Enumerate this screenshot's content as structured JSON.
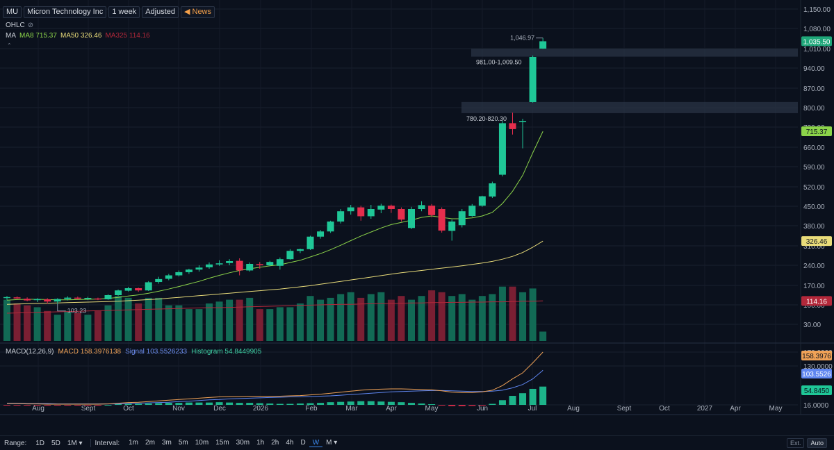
{
  "header": {
    "symbol": "MU",
    "company": "Micron Technology Inc",
    "interval": "1 week",
    "adjust": "Adjusted",
    "news_label": "News"
  },
  "ohlc_label": "OHLC",
  "ma_legend": {
    "label": "MA",
    "items": [
      {
        "text": "MA8 715.37",
        "color": "#8cd44a"
      },
      {
        "text": "MA50 326.46",
        "color": "#e9dc7a"
      },
      {
        "text": "MA325 114.16",
        "color": "#b3283a"
      }
    ]
  },
  "macd_legend": {
    "label": "MACD(12,26,9)",
    "items": [
      {
        "text": "MACD 158.3976138",
        "color": "#f0a257"
      },
      {
        "text": "Signal 103.5526233",
        "color": "#6e8ff2"
      },
      {
        "text": "Histogram 54.8449905",
        "color": "#3fd1a5"
      }
    ]
  },
  "price_axis": {
    "ticks": [
      "1,150.00",
      "1,080.00",
      "1,010.00",
      "940.00",
      "870.00",
      "800.00",
      "730.00",
      "660.00",
      "590.00",
      "520.00",
      "450.00",
      "380.00",
      "310.00",
      "240.00",
      "170.00",
      "100.00",
      "30.00"
    ],
    "labels": [
      {
        "text": "1,035.50",
        "bg": "#1fa77a",
        "fg": "#ffffff",
        "price": 1035.5
      },
      {
        "text": "715.37",
        "bg": "#8cd44a",
        "fg": "#0b111d",
        "price": 715.37
      },
      {
        "text": "326.46",
        "bg": "#e9dc7a",
        "fg": "#0b111d",
        "price": 326.46
      },
      {
        "text": "114.16",
        "bg": "#b3283a",
        "fg": "#ffffff",
        "price": 114.16
      }
    ]
  },
  "macd_axis": {
    "ticks": [
      "178.0000",
      "130.0000",
      "16.0000"
    ],
    "labels": [
      {
        "text": "158.3976",
        "bg": "#f0a257",
        "fg": "#0b111d",
        "value": 158.4
      },
      {
        "text": "103.5526",
        "bg": "#5f86f0",
        "fg": "#ffffff",
        "value": 103.55
      },
      {
        "text": "54.8450",
        "bg": "#1fc797",
        "fg": "#0b111d",
        "value": 54.84
      }
    ]
  },
  "time_axis": [
    "Aug",
    "Sept",
    "Oct",
    "Nov",
    "Dec",
    "2026",
    "Feb",
    "Mar",
    "Apr",
    "May",
    "Jun",
    "Jul",
    "Aug",
    "Sept",
    "Oct",
    "2027",
    "Apr",
    "May"
  ],
  "annotations": {
    "high_label": "1,046.97",
    "low_label": "103.23",
    "zone_upper": "981.00-1,009.50",
    "zone_lower": "780.20-820.30"
  },
  "bottom_bar": {
    "range_label": "Range:",
    "range_items": [
      "1D",
      "5D",
      "1M ▾"
    ],
    "interval_label": "Interval:",
    "interval_items": [
      "1m",
      "2m",
      "3m",
      "5m",
      "10m",
      "15m",
      "30m",
      "1h",
      "2h",
      "4h",
      "D",
      "W",
      "M ▾"
    ],
    "active_interval": "W",
    "ext_label": "Ext.",
    "auto_label": "Auto"
  },
  "colors": {
    "up": "#1fc797",
    "down": "#e52e4d",
    "ma8": "#8cd44a",
    "ma50": "#e9dc7a",
    "ma325": "#b3283a",
    "macd": "#f0a257",
    "signal": "#5f86f0"
  },
  "chart_data": {
    "type": "candlestick",
    "price_range": [
      0,
      1150
    ],
    "zones": [
      [
        981.0,
        1009.5
      ],
      [
        780.2,
        820.3
      ]
    ],
    "candles": [
      {
        "o": 125,
        "h": 132,
        "l": 118,
        "c": 128
      },
      {
        "o": 127,
        "h": 131,
        "l": 121,
        "c": 123
      },
      {
        "o": 122,
        "h": 127,
        "l": 113,
        "c": 116
      },
      {
        "o": 117,
        "h": 124,
        "l": 110,
        "c": 121
      },
      {
        "o": 120,
        "h": 124,
        "l": 104,
        "c": 112
      },
      {
        "o": 112,
        "h": 124,
        "l": 103.23,
        "c": 121
      },
      {
        "o": 121,
        "h": 131,
        "l": 116,
        "c": 126
      },
      {
        "o": 126,
        "h": 130,
        "l": 119,
        "c": 122
      },
      {
        "o": 122,
        "h": 129,
        "l": 117,
        "c": 125
      },
      {
        "o": 123,
        "h": 126,
        "l": 117,
        "c": 121
      },
      {
        "o": 120,
        "h": 138,
        "l": 118,
        "c": 135
      },
      {
        "o": 135,
        "h": 155,
        "l": 133,
        "c": 152
      },
      {
        "o": 151,
        "h": 165,
        "l": 148,
        "c": 160
      },
      {
        "o": 160,
        "h": 162,
        "l": 147,
        "c": 152
      },
      {
        "o": 152,
        "h": 185,
        "l": 150,
        "c": 181
      },
      {
        "o": 182,
        "h": 200,
        "l": 176,
        "c": 192
      },
      {
        "o": 193,
        "h": 210,
        "l": 188,
        "c": 205
      },
      {
        "o": 205,
        "h": 222,
        "l": 201,
        "c": 216
      },
      {
        "o": 216,
        "h": 228,
        "l": 210,
        "c": 225
      },
      {
        "o": 225,
        "h": 240,
        "l": 218,
        "c": 232
      },
      {
        "o": 233,
        "h": 250,
        "l": 228,
        "c": 243
      },
      {
        "o": 243,
        "h": 258,
        "l": 238,
        "c": 247
      },
      {
        "o": 248,
        "h": 262,
        "l": 240,
        "c": 255
      },
      {
        "o": 256,
        "h": 265,
        "l": 205,
        "c": 222
      },
      {
        "o": 222,
        "h": 250,
        "l": 218,
        "c": 245
      },
      {
        "o": 244,
        "h": 252,
        "l": 228,
        "c": 240
      },
      {
        "o": 240,
        "h": 256,
        "l": 237,
        "c": 252
      },
      {
        "o": 238,
        "h": 268,
        "l": 225,
        "c": 262
      },
      {
        "o": 262,
        "h": 298,
        "l": 260,
        "c": 292
      },
      {
        "o": 292,
        "h": 300,
        "l": 284,
        "c": 298
      },
      {
        "o": 298,
        "h": 345,
        "l": 295,
        "c": 342
      },
      {
        "o": 342,
        "h": 365,
        "l": 335,
        "c": 360
      },
      {
        "o": 360,
        "h": 398,
        "l": 355,
        "c": 395
      },
      {
        "o": 395,
        "h": 440,
        "l": 388,
        "c": 432
      },
      {
        "o": 432,
        "h": 455,
        "l": 420,
        "c": 446
      },
      {
        "o": 446,
        "h": 452,
        "l": 398,
        "c": 414
      },
      {
        "o": 414,
        "h": 455,
        "l": 405,
        "c": 440
      },
      {
        "o": 438,
        "h": 459,
        "l": 425,
        "c": 452
      },
      {
        "o": 452,
        "h": 456,
        "l": 426,
        "c": 440
      },
      {
        "o": 440,
        "h": 446,
        "l": 395,
        "c": 402
      },
      {
        "o": 372,
        "h": 448,
        "l": 368,
        "c": 440
      },
      {
        "o": 440,
        "h": 468,
        "l": 432,
        "c": 454
      },
      {
        "o": 452,
        "h": 458,
        "l": 410,
        "c": 418
      },
      {
        "o": 440,
        "h": 446,
        "l": 356,
        "c": 363
      },
      {
        "o": 362,
        "h": 402,
        "l": 328,
        "c": 395
      },
      {
        "o": 382,
        "h": 440,
        "l": 374,
        "c": 432
      },
      {
        "o": 415,
        "h": 458,
        "l": 412,
        "c": 452
      },
      {
        "o": 452,
        "h": 488,
        "l": 448,
        "c": 486
      },
      {
        "o": 485,
        "h": 538,
        "l": 480,
        "c": 532
      },
      {
        "o": 562,
        "h": 752,
        "l": 556,
        "c": 744
      },
      {
        "o": 744,
        "h": 782,
        "l": 704,
        "c": 723
      },
      {
        "o": 748,
        "h": 760,
        "l": 656,
        "c": 752
      },
      {
        "o": 820,
        "h": 985,
        "l": 818,
        "c": 980
      },
      {
        "o": 1010,
        "h": 1046.97,
        "l": 1009,
        "c": 1035.5
      }
    ],
    "volume": [
      22,
      20,
      19,
      18,
      16,
      14,
      16,
      15,
      14,
      16,
      19,
      24,
      23,
      20,
      23,
      23,
      19,
      19,
      17,
      17,
      20,
      21,
      22,
      22,
      23,
      17,
      17,
      18,
      18,
      20,
      24,
      22,
      23,
      25,
      26,
      23,
      25,
      26,
      22,
      24,
      22,
      24,
      27,
      26,
      24,
      25,
      22,
      24,
      25,
      29,
      29,
      26,
      28,
      5
    ],
    "volume_down": [
      false,
      true,
      true,
      false,
      true,
      false,
      false,
      true,
      false,
      true,
      false,
      false,
      false,
      true,
      false,
      false,
      false,
      false,
      false,
      false,
      false,
      false,
      false,
      true,
      false,
      true,
      false,
      false,
      false,
      false,
      false,
      false,
      false,
      false,
      false,
      true,
      false,
      false,
      true,
      true,
      false,
      false,
      true,
      true,
      false,
      false,
      false,
      false,
      false,
      false,
      true,
      false,
      false,
      false
    ],
    "ma8": [
      117,
      119,
      120,
      120,
      119,
      118,
      118,
      119,
      120,
      121,
      123,
      127,
      132,
      136,
      142,
      149,
      157,
      166,
      175,
      184,
      195,
      205,
      214,
      222,
      228,
      233,
      238,
      242,
      250,
      258,
      270,
      282,
      296,
      312,
      328,
      344,
      358,
      372,
      384,
      392,
      400,
      410,
      415,
      410,
      405,
      405,
      408,
      415,
      428,
      460,
      504,
      560,
      640,
      715.37
    ],
    "ma50": [
      102,
      103,
      104,
      105,
      106,
      107,
      108,
      109,
      110,
      111,
      112,
      113,
      115,
      117,
      119,
      121,
      124,
      127,
      130,
      133,
      136,
      139,
      142,
      145,
      148,
      151,
      154,
      157,
      161,
      165,
      169,
      174,
      179,
      184,
      189,
      194,
      199,
      204,
      209,
      214,
      218,
      222,
      226,
      230,
      234,
      238,
      243,
      248,
      254,
      262,
      272,
      286,
      305,
      326.46
    ],
    "ma325": [
      70,
      71,
      72,
      73,
      74,
      75,
      76,
      77,
      78,
      79,
      80,
      81,
      82,
      83,
      84,
      85,
      86,
      87,
      88,
      89,
      90,
      90,
      91,
      92,
      93,
      94,
      95,
      96,
      97,
      98,
      99,
      100,
      101,
      102,
      102,
      103,
      104,
      105,
      105,
      106,
      107,
      107,
      108,
      108,
      109,
      109,
      110,
      110,
      111,
      111,
      112,
      113,
      113,
      114.16
    ],
    "macd": [
      4,
      4,
      3,
      3,
      2,
      2,
      2,
      2,
      2,
      2,
      3,
      5,
      7,
      8,
      10,
      12,
      14,
      16,
      18,
      20,
      22,
      24,
      25,
      25,
      26,
      26,
      26,
      26,
      27,
      28,
      30,
      32,
      35,
      38,
      41,
      44,
      46,
      47,
      48,
      48,
      47,
      46,
      45,
      42,
      38,
      37,
      37,
      39,
      44,
      58,
      78,
      96,
      126,
      158.4
    ],
    "signal": [
      5,
      5,
      4,
      4,
      4,
      3,
      3,
      3,
      3,
      3,
      3,
      3,
      4,
      5,
      6,
      7,
      8,
      10,
      11,
      13,
      15,
      16,
      18,
      19,
      20,
      21,
      22,
      23,
      24,
      24,
      25,
      26,
      27,
      29,
      31,
      33,
      35,
      37,
      39,
      40,
      41,
      42,
      43,
      43,
      42,
      41,
      40,
      40,
      41,
      44,
      51,
      61,
      78,
      103.55
    ],
    "histogram": [
      -1,
      -1,
      -1,
      -1,
      -2,
      -1,
      -1,
      -1,
      -1,
      -1,
      0,
      2,
      3,
      3,
      4,
      5,
      6,
      6,
      7,
      7,
      7,
      8,
      7,
      6,
      6,
      5,
      4,
      3,
      3,
      4,
      5,
      6,
      8,
      9,
      10,
      11,
      11,
      10,
      9,
      8,
      6,
      4,
      2,
      -1,
      -4,
      -4,
      -3,
      -1,
      3,
      14,
      27,
      35,
      48,
      54.84
    ]
  }
}
